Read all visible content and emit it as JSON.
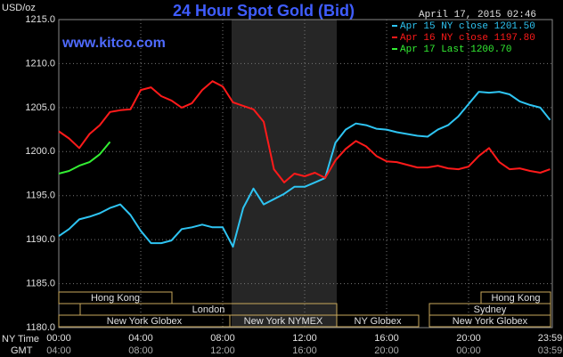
{
  "chart_data": {
    "type": "line",
    "title": "24 Hour Spot Gold (Bid)",
    "subtitle": "www.kitco.com",
    "timestamp": "April 17, 2015 02:46",
    "y_label": "USD/oz",
    "x_label": "NY Time",
    "x2_label": "GMT",
    "x": [
      0,
      0.5,
      1,
      1.5,
      2,
      2.5,
      3,
      3.5,
      4,
      4.5,
      5,
      5.5,
      6,
      6.5,
      7,
      7.5,
      8,
      8.5,
      9,
      9.5,
      10,
      10.5,
      11,
      11.5,
      12,
      12.5,
      13,
      13.5,
      14,
      14.5,
      15,
      15.5,
      16,
      16.5,
      17,
      17.5,
      18,
      18.5,
      19,
      19.5,
      20,
      20.5,
      21,
      21.5,
      22,
      22.5,
      23,
      23.5,
      23.98
    ],
    "series": [
      {
        "name": "Apr 15 NY close 1201.50",
        "color": "#2ec4f2",
        "values": [
          1190.4,
          1191.2,
          1192.3,
          1192.6,
          1193.0,
          1193.6,
          1194.0,
          1192.8,
          1191.0,
          1189.6,
          1189.6,
          1189.9,
          1191.2,
          1191.4,
          1191.7,
          1191.4,
          1191.4,
          1189.2,
          1193.6,
          1195.8,
          1194.0,
          1194.6,
          1195.2,
          1196.0,
          1196.0,
          1196.5,
          1197.0,
          1201.0,
          1202.5,
          1203.2,
          1203.0,
          1202.6,
          1202.5,
          1202.2,
          1202.0,
          1201.8,
          1201.7,
          1202.5,
          1203.0,
          1204.0,
          1205.4,
          1206.8,
          1206.7,
          1206.8,
          1206.5,
          1205.7,
          1205.3,
          1205.0,
          1203.6
        ]
      },
      {
        "name": "Apr 16 NY close 1197.80",
        "color": "#ff1a1a",
        "values": [
          1202.3,
          1201.5,
          1200.4,
          1202.0,
          1203.0,
          1204.5,
          1204.7,
          1204.8,
          1207.0,
          1207.3,
          1206.3,
          1205.8,
          1205.0,
          1205.5,
          1207.0,
          1208.0,
          1207.4,
          1205.6,
          1205.2,
          1204.8,
          1203.4,
          1198.0,
          1196.5,
          1197.5,
          1197.2,
          1197.6,
          1197.0,
          1199.0,
          1200.3,
          1201.2,
          1200.6,
          1199.5,
          1198.9,
          1198.8,
          1198.5,
          1198.2,
          1198.2,
          1198.4,
          1198.1,
          1198.0,
          1198.3,
          1199.5,
          1200.4,
          1198.8,
          1198.0,
          1198.1,
          1197.8,
          1197.6,
          1198.0
        ]
      },
      {
        "name": "Apr 17 Last 1200.70",
        "color": "#33ee33",
        "values": [
          1197.5,
          1197.8,
          1198.4,
          1198.8,
          1199.7,
          1201.1,
          null,
          null,
          null,
          null,
          null,
          null,
          null,
          null,
          null,
          null,
          null,
          null,
          null,
          null,
          null,
          null,
          null,
          null,
          null,
          null,
          null,
          null,
          null,
          null,
          null,
          null,
          null,
          null,
          null,
          null,
          null,
          null,
          null,
          null,
          null,
          null,
          null,
          null,
          null,
          null,
          null,
          null,
          null
        ]
      }
    ],
    "xlim": [
      0,
      24
    ],
    "ylim": [
      1180,
      1215
    ],
    "xticks": [
      {
        "value": 0,
        "label": "00:00"
      },
      {
        "value": 4,
        "label": "04:00"
      },
      {
        "value": 8,
        "label": "08:00"
      },
      {
        "value": 12,
        "label": "12:00"
      },
      {
        "value": 16,
        "label": "16:00"
      },
      {
        "value": 20,
        "label": "20:00"
      },
      {
        "value": 23.98,
        "label": "23:59"
      }
    ],
    "x2ticks": [
      {
        "value": 0,
        "label": "04:00"
      },
      {
        "value": 4,
        "label": "08:00"
      },
      {
        "value": 8,
        "label": "12:00"
      },
      {
        "value": 12,
        "label": "16:00"
      },
      {
        "value": 16,
        "label": "20:00"
      },
      {
        "value": 20,
        "label": "00:00"
      },
      {
        "value": 23.98,
        "label": "03:59"
      }
    ],
    "yticks": [
      {
        "value": 1180,
        "label": "1180.0"
      },
      {
        "value": 1185,
        "label": "1185.0"
      },
      {
        "value": 1190,
        "label": "1190.0"
      },
      {
        "value": 1195,
        "label": "1195.0"
      },
      {
        "value": 1200,
        "label": "1200.0"
      },
      {
        "value": 1205,
        "label": "1205.0"
      },
      {
        "value": 1210,
        "label": "1210.0"
      },
      {
        "value": 1215,
        "label": "1215.0"
      }
    ],
    "grid": true,
    "legend": "top-right",
    "sessions": [
      "Hong Kong",
      "London",
      "New York Globex",
      "New York NYMEX",
      "NY Globex",
      "Hong Kong",
      "Sydney",
      "New York Globex"
    ]
  }
}
